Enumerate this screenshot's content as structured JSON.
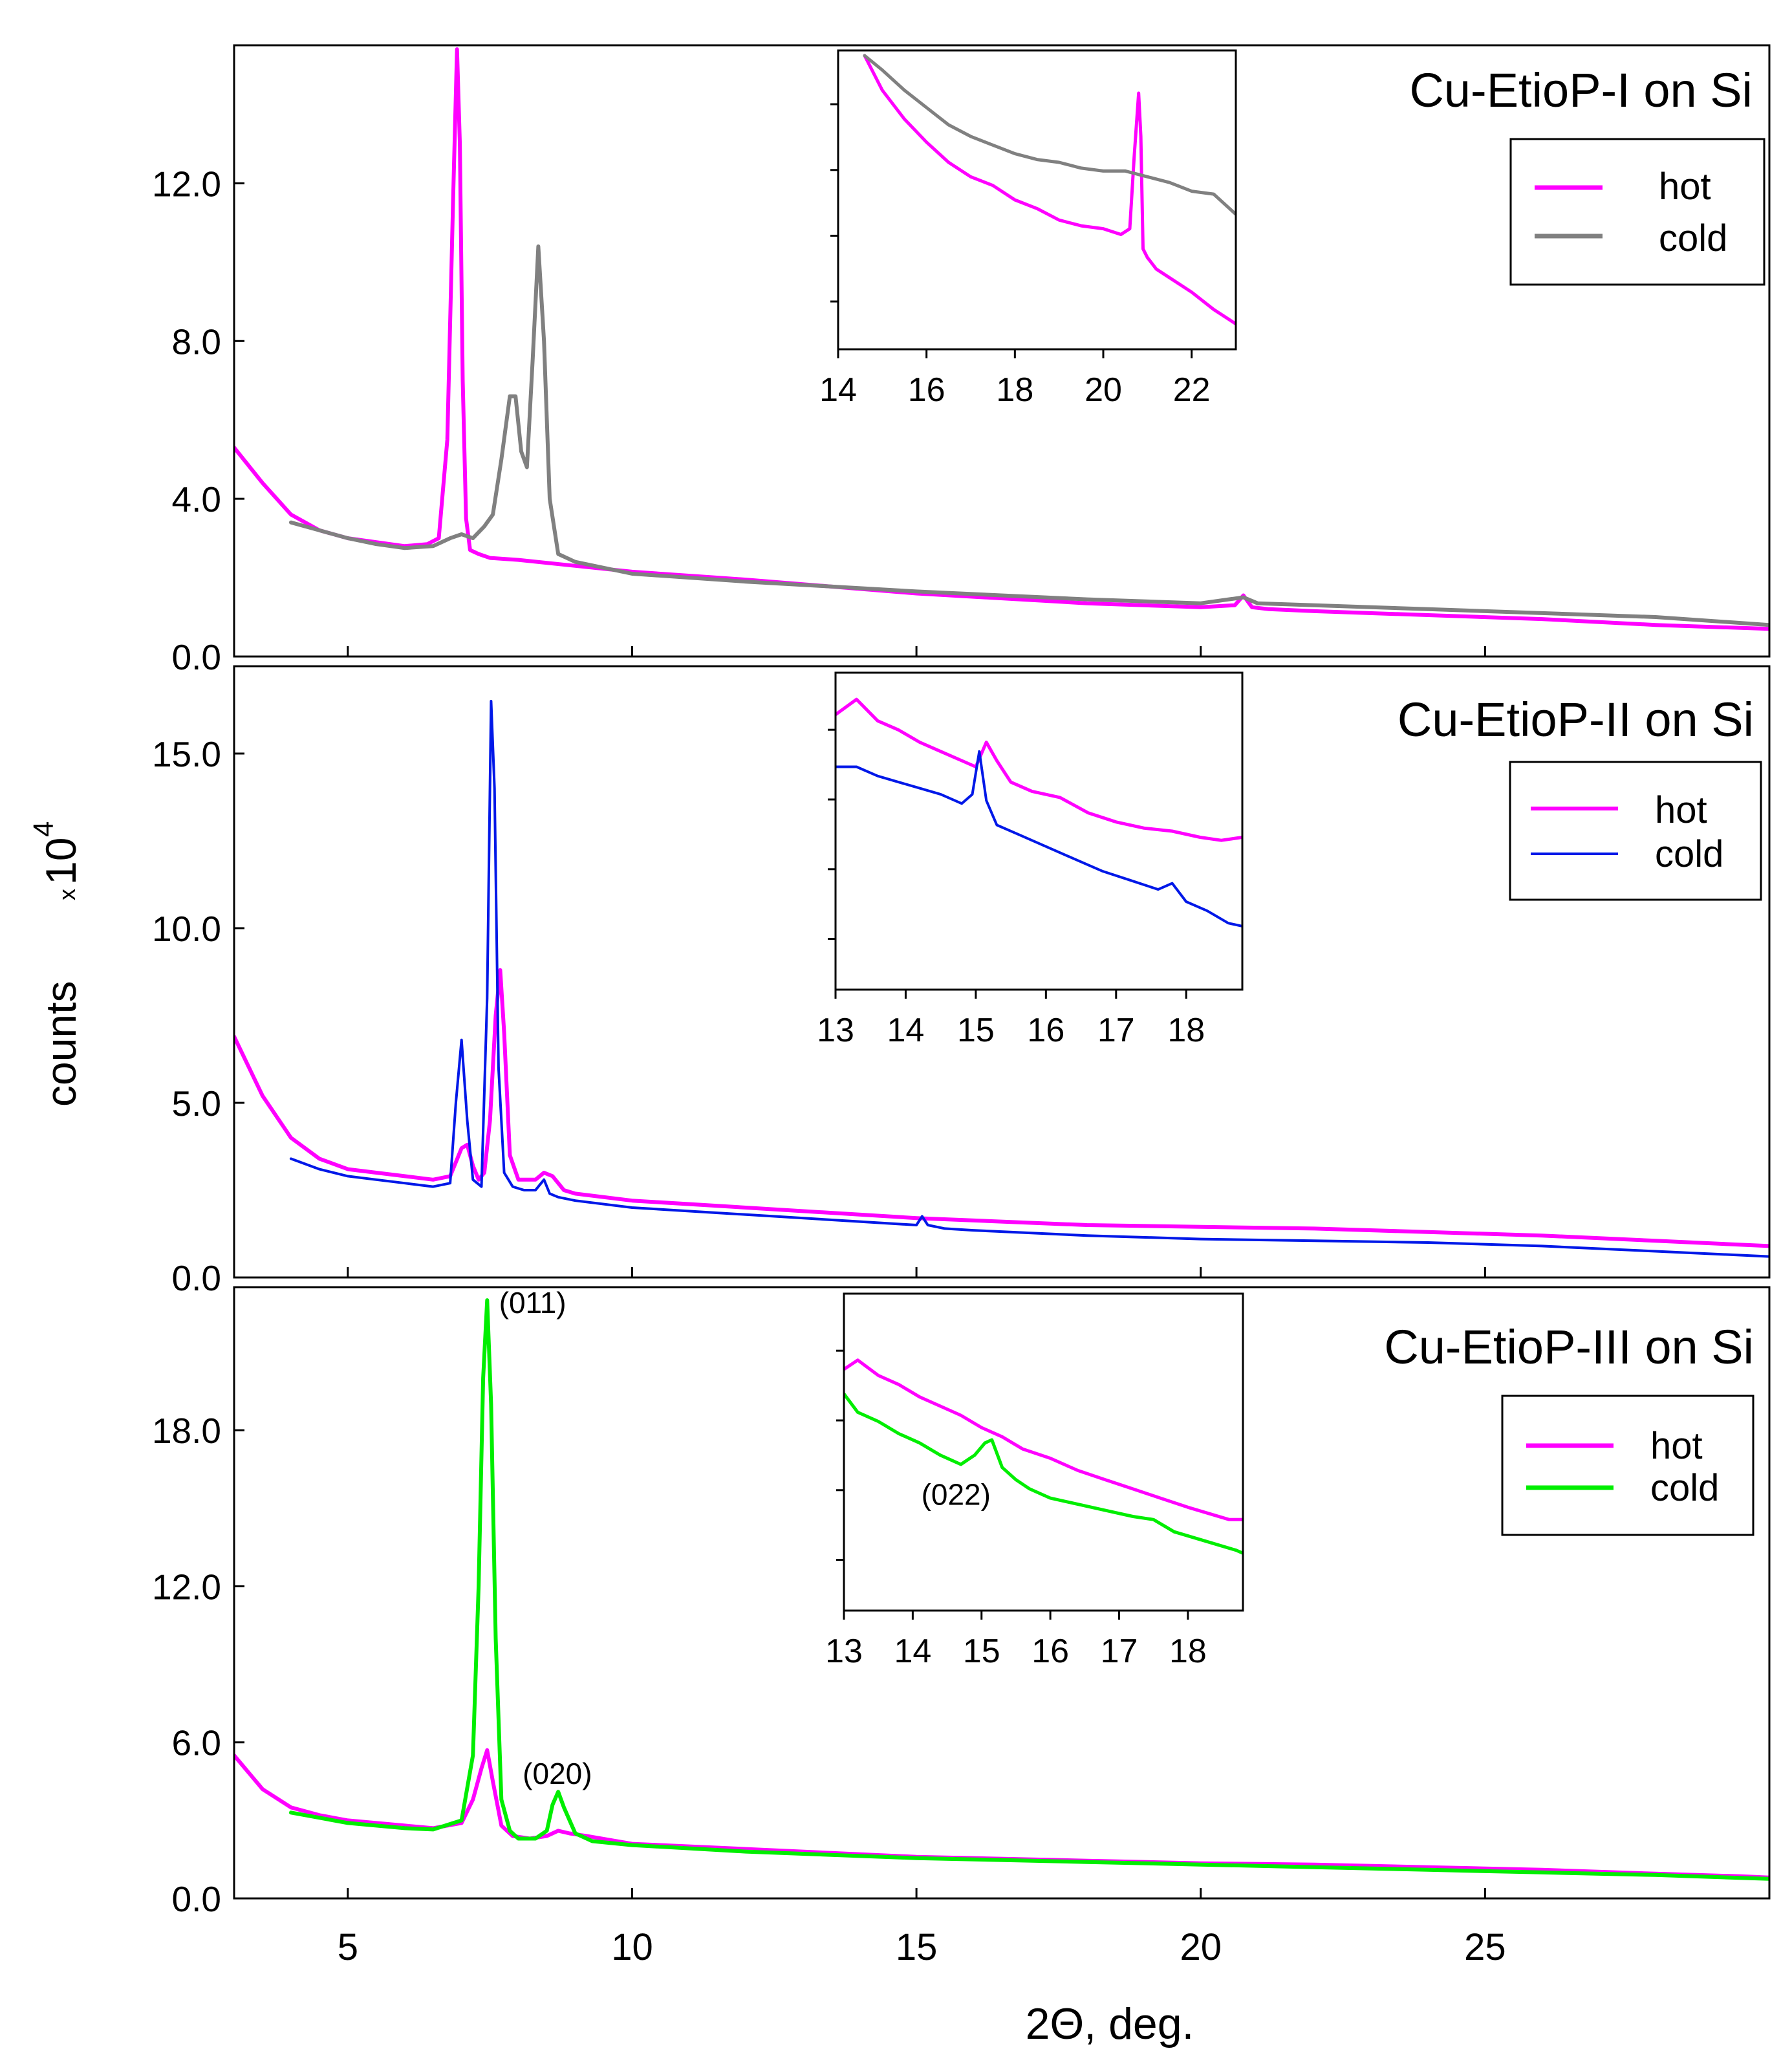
{
  "figure": {
    "ylabel": "counts",
    "ylabel_multiplier_prefix": "x",
    "ylabel_multiplier_base": "10",
    "ylabel_multiplier_exp": "4",
    "xlabel_symbol": "2Θ",
    "xlabel_suffix": ", deg."
  },
  "colors": {
    "hot": "#ff00ff",
    "cold_I": "#808080",
    "cold_II": "#0018e8",
    "cold_III": "#00ee00"
  },
  "chart_data": [
    {
      "id": "p1",
      "type": "line",
      "title": "Cu-EtioP-I on Si",
      "xlabel": "2Θ, deg.",
      "ylabel": "counts x10^4",
      "xlim": [
        3,
        30
      ],
      "ylim": [
        0,
        15.5
      ],
      "xticks": [
        5,
        10,
        15,
        20,
        25
      ],
      "show_xtick_labels": false,
      "yticks": [
        0,
        4,
        8,
        12
      ],
      "ytick_labels": [
        "0.0",
        "4.0",
        "8.0",
        "12.0"
      ],
      "legend": {
        "position": "top-right",
        "entries": [
          "hot",
          "cold"
        ]
      },
      "series": [
        {
          "name": "hot",
          "color": "#ff00ff",
          "x": [
            3,
            3.5,
            4,
            4.5,
            5,
            5.5,
            6,
            6.4,
            6.6,
            6.75,
            6.85,
            6.92,
            6.97,
            7.02,
            7.08,
            7.15,
            7.3,
            7.5,
            8,
            9,
            10,
            12,
            15,
            18,
            20,
            20.6,
            20.75,
            20.9,
            21.2,
            22,
            24,
            26,
            28,
            30
          ],
          "y": [
            5.3,
            4.4,
            3.6,
            3.2,
            3.0,
            2.9,
            2.8,
            2.85,
            3.0,
            5.5,
            11.5,
            15.4,
            13.0,
            7.0,
            3.5,
            2.7,
            2.6,
            2.5,
            2.45,
            2.3,
            2.15,
            1.95,
            1.6,
            1.35,
            1.25,
            1.3,
            1.55,
            1.25,
            1.2,
            1.15,
            1.05,
            0.95,
            0.8,
            0.7
          ]
        },
        {
          "name": "cold",
          "color": "#808080",
          "x": [
            4,
            4.5,
            5,
            5.5,
            6,
            6.5,
            6.8,
            7.0,
            7.2,
            7.4,
            7.55,
            7.7,
            7.85,
            7.95,
            8.05,
            8.15,
            8.25,
            8.35,
            8.45,
            8.55,
            8.7,
            9,
            10,
            12,
            15,
            18,
            20,
            20.75,
            21,
            22,
            24,
            26,
            28,
            30
          ],
          "y": [
            3.4,
            3.2,
            3.0,
            2.85,
            2.75,
            2.8,
            3.0,
            3.1,
            3.0,
            3.3,
            3.6,
            5.0,
            6.6,
            6.6,
            5.2,
            4.8,
            7.5,
            10.4,
            8.0,
            4.0,
            2.6,
            2.4,
            2.1,
            1.9,
            1.65,
            1.45,
            1.35,
            1.5,
            1.35,
            1.3,
            1.2,
            1.1,
            1.0,
            0.8
          ]
        }
      ],
      "inset": {
        "xlim": [
          14,
          23
        ],
        "xticks": [
          14,
          16,
          18,
          20,
          22
        ],
        "ylim": [
          0,
          1
        ],
        "series": [
          {
            "name": "hot",
            "color": "#ff00ff",
            "x": [
              14.6,
              15,
              15.5,
              16,
              16.5,
              17,
              17.5,
              18,
              18.5,
              19,
              19.5,
              20,
              20.4,
              20.6,
              20.7,
              20.8,
              20.85,
              20.9,
              21,
              21.2,
              21.5,
              22,
              22.5,
              23
            ],
            "y": [
              1.0,
              0.88,
              0.78,
              0.7,
              0.63,
              0.58,
              0.55,
              0.5,
              0.47,
              0.43,
              0.41,
              0.4,
              0.38,
              0.4,
              0.65,
              0.87,
              0.72,
              0.33,
              0.3,
              0.26,
              0.23,
              0.18,
              0.12,
              0.07
            ]
          },
          {
            "name": "cold",
            "color": "#808080",
            "x": [
              14.6,
              15,
              15.5,
              16,
              16.5,
              17,
              17.5,
              18,
              18.5,
              19,
              19.5,
              20,
              20.5,
              21,
              21.5,
              22,
              22.5,
              23
            ],
            "y": [
              1.0,
              0.95,
              0.88,
              0.82,
              0.76,
              0.72,
              0.69,
              0.66,
              0.64,
              0.63,
              0.61,
              0.6,
              0.6,
              0.58,
              0.56,
              0.53,
              0.52,
              0.45
            ]
          }
        ]
      }
    },
    {
      "id": "p2",
      "type": "line",
      "title": "Cu-EtioP-II on Si",
      "xlabel": "2Θ, deg.",
      "ylabel": "counts x10^4",
      "xlim": [
        3,
        30
      ],
      "ylim": [
        0,
        17.5
      ],
      "xticks": [
        5,
        10,
        15,
        20,
        25
      ],
      "show_xtick_labels": false,
      "yticks": [
        0,
        5,
        10,
        15
      ],
      "ytick_labels": [
        "0.0",
        "5.0",
        "10.0",
        "15.0"
      ],
      "legend": {
        "position": "top-right",
        "entries": [
          "hot",
          "cold"
        ]
      },
      "series": [
        {
          "name": "hot",
          "color": "#ff00ff",
          "x": [
            3,
            3.5,
            4,
            4.5,
            5,
            5.5,
            6,
            6.5,
            6.8,
            7.0,
            7.1,
            7.2,
            7.3,
            7.4,
            7.5,
            7.6,
            7.68,
            7.75,
            7.85,
            8.0,
            8.3,
            8.45,
            8.6,
            8.8,
            9,
            10,
            12,
            15,
            18,
            20,
            22,
            24,
            26,
            28,
            30
          ],
          "y": [
            6.9,
            5.2,
            4.0,
            3.4,
            3.1,
            3.0,
            2.9,
            2.8,
            2.9,
            3.7,
            3.8,
            3.2,
            2.8,
            3.0,
            4.5,
            7.5,
            8.8,
            7.0,
            3.5,
            2.8,
            2.8,
            3.0,
            2.9,
            2.5,
            2.4,
            2.2,
            2.0,
            1.7,
            1.5,
            1.45,
            1.4,
            1.3,
            1.2,
            1.05,
            0.9
          ]
        },
        {
          "name": "cold",
          "color": "#0018e8",
          "x": [
            4,
            4.5,
            5,
            5.5,
            6,
            6.5,
            6.8,
            6.9,
            7.0,
            7.1,
            7.2,
            7.35,
            7.45,
            7.52,
            7.58,
            7.65,
            7.75,
            7.9,
            8.1,
            8.3,
            8.45,
            8.55,
            8.7,
            9,
            10,
            12,
            14,
            15,
            15.1,
            15.2,
            15.5,
            16,
            18,
            20,
            22,
            24,
            26,
            28,
            30
          ],
          "y": [
            3.4,
            3.1,
            2.9,
            2.8,
            2.7,
            2.6,
            2.7,
            5.0,
            6.8,
            4.5,
            2.8,
            2.6,
            8.0,
            16.5,
            14.0,
            6.0,
            3.0,
            2.6,
            2.5,
            2.5,
            2.8,
            2.4,
            2.3,
            2.2,
            2.0,
            1.8,
            1.6,
            1.5,
            1.75,
            1.5,
            1.4,
            1.35,
            1.2,
            1.1,
            1.05,
            1.0,
            0.9,
            0.75,
            0.6
          ]
        }
      ],
      "inset": {
        "xlim": [
          13,
          18.8
        ],
        "xticks": [
          13,
          14,
          15,
          16,
          17,
          18
        ],
        "ylim": [
          0,
          1
        ],
        "series": [
          {
            "name": "hot",
            "color": "#ff00ff",
            "x": [
              13,
              13.3,
              13.6,
              13.9,
              14.2,
              14.5,
              14.8,
              15.0,
              15.15,
              15.3,
              15.5,
              15.8,
              16.2,
              16.6,
              17.0,
              17.4,
              17.8,
              18.2,
              18.5,
              18.8
            ],
            "y": [
              0.88,
              0.93,
              0.86,
              0.83,
              0.79,
              0.76,
              0.73,
              0.71,
              0.79,
              0.73,
              0.66,
              0.63,
              0.61,
              0.56,
              0.53,
              0.51,
              0.5,
              0.48,
              0.47,
              0.48
            ]
          },
          {
            "name": "cold",
            "color": "#0018e8",
            "x": [
              13,
              13.3,
              13.6,
              13.9,
              14.2,
              14.5,
              14.8,
              14.95,
              15.05,
              15.15,
              15.3,
              15.6,
              16.0,
              16.4,
              16.8,
              17.2,
              17.6,
              17.8,
              18.0,
              18.3,
              18.6,
              18.8
            ],
            "y": [
              0.71,
              0.71,
              0.68,
              0.66,
              0.64,
              0.62,
              0.59,
              0.62,
              0.76,
              0.6,
              0.52,
              0.49,
              0.45,
              0.41,
              0.37,
              0.34,
              0.31,
              0.33,
              0.27,
              0.24,
              0.2,
              0.19
            ]
          }
        ]
      }
    },
    {
      "id": "p3",
      "type": "line",
      "title": "Cu-EtioP-III on Si",
      "xlabel": "2Θ, deg.",
      "ylabel": "counts x10^4",
      "xlim": [
        3,
        30
      ],
      "ylim": [
        0,
        23.5
      ],
      "xticks": [
        5,
        10,
        15,
        20,
        25
      ],
      "xtick_labels": [
        "5",
        "10",
        "15",
        "20",
        "25"
      ],
      "show_xtick_labels": true,
      "yticks": [
        0,
        6,
        12,
        18
      ],
      "ytick_labels": [
        "0.0",
        "6.0",
        "12.0",
        "18.0"
      ],
      "legend": {
        "position": "top-right",
        "entries": [
          "hot",
          "cold"
        ]
      },
      "annotations": [
        {
          "text": "(011)",
          "x": 7.5,
          "y": 22.5
        },
        {
          "text": "(020)",
          "x": 8.7,
          "y": 4.4
        }
      ],
      "series": [
        {
          "name": "hot",
          "color": "#ff00ff",
          "x": [
            3,
            3.5,
            4,
            4.5,
            5,
            5.5,
            6,
            6.5,
            7.0,
            7.2,
            7.35,
            7.45,
            7.55,
            7.7,
            7.9,
            8.2,
            8.5,
            8.7,
            8.9,
            9.2,
            10,
            12,
            15,
            18,
            20,
            22,
            24,
            26,
            28,
            29.5,
            30
          ],
          "y": [
            5.5,
            4.2,
            3.5,
            3.2,
            3.0,
            2.9,
            2.8,
            2.7,
            2.9,
            3.8,
            5.0,
            5.7,
            4.5,
            2.8,
            2.4,
            2.3,
            2.4,
            2.6,
            2.5,
            2.4,
            2.1,
            1.9,
            1.6,
            1.45,
            1.35,
            1.3,
            1.2,
            1.1,
            0.95,
            0.85,
            0.8
          ]
        },
        {
          "name": "cold",
          "color": "#00ee00",
          "x": [
            4,
            4.5,
            5,
            5.5,
            6,
            6.5,
            7.0,
            7.2,
            7.3,
            7.38,
            7.45,
            7.52,
            7.6,
            7.7,
            7.85,
            8.0,
            8.3,
            8.5,
            8.6,
            8.7,
            8.8,
            9.0,
            9.3,
            10,
            12,
            15,
            18,
            20,
            22,
            24,
            26,
            28,
            30
          ],
          "y": [
            3.3,
            3.1,
            2.9,
            2.8,
            2.7,
            2.65,
            3.0,
            5.5,
            12.0,
            20.0,
            23.0,
            19.0,
            10.0,
            3.8,
            2.6,
            2.3,
            2.3,
            2.6,
            3.6,
            4.1,
            3.5,
            2.5,
            2.2,
            2.05,
            1.8,
            1.55,
            1.4,
            1.3,
            1.2,
            1.1,
            1.0,
            0.9,
            0.75
          ]
        }
      ],
      "inset": {
        "xlim": [
          13,
          18.8
        ],
        "xticks": [
          13,
          14,
          15,
          16,
          17,
          18
        ],
        "ylim": [
          0,
          1
        ],
        "annotation": {
          "text": "(022)",
          "x": 14.5,
          "y": 0.37
        },
        "series": [
          {
            "name": "hot",
            "color": "#ff00ff",
            "x": [
              13,
              13.2,
              13.5,
              13.8,
              14.1,
              14.4,
              14.7,
              15.0,
              15.3,
              15.6,
              16.0,
              16.4,
              16.8,
              17.2,
              17.6,
              18.0,
              18.3,
              18.6,
              18.8
            ],
            "y": [
              0.77,
              0.8,
              0.75,
              0.72,
              0.68,
              0.65,
              0.62,
              0.58,
              0.55,
              0.51,
              0.48,
              0.44,
              0.41,
              0.38,
              0.35,
              0.32,
              0.3,
              0.28,
              0.28
            ]
          },
          {
            "name": "cold",
            "color": "#00ee00",
            "x": [
              13,
              13.2,
              13.5,
              13.8,
              14.1,
              14.4,
              14.7,
              14.9,
              15.05,
              15.15,
              15.3,
              15.5,
              15.7,
              16.0,
              16.4,
              16.8,
              17.2,
              17.5,
              17.8,
              18.1,
              18.4,
              18.7,
              18.8
            ],
            "y": [
              0.69,
              0.63,
              0.6,
              0.56,
              0.53,
              0.49,
              0.46,
              0.49,
              0.53,
              0.54,
              0.45,
              0.41,
              0.38,
              0.35,
              0.33,
              0.31,
              0.29,
              0.28,
              0.24,
              0.22,
              0.2,
              0.18,
              0.17
            ]
          }
        ]
      }
    }
  ]
}
